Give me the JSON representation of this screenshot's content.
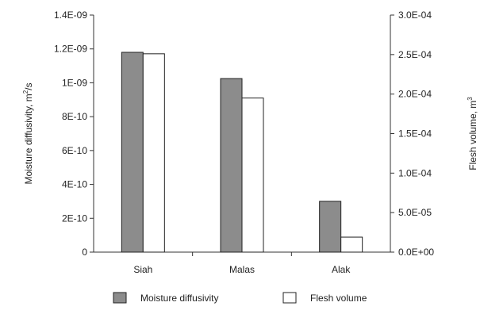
{
  "chart_data": {
    "type": "bar",
    "categories": [
      "Siah",
      "Malas",
      "Alak"
    ],
    "series": [
      {
        "name": "Moisture diffusivity",
        "axis": "left",
        "values": [
          1.18e-09,
          1.025e-09,
          3e-10
        ],
        "color": "#8c8c8c"
      },
      {
        "name": "Flesh volume",
        "axis": "right",
        "values": [
          0.000251,
          0.000195,
          1.9e-05
        ],
        "color": "#ffffff"
      }
    ],
    "y_left": {
      "label_main": "Moisture diffusivity, m",
      "label_sup": "2",
      "label_tail": "/s",
      "ylim": [
        0,
        1.4e-09
      ],
      "ticks": [
        0,
        2e-10,
        4e-10,
        6e-10,
        8e-10,
        1e-09,
        1.2e-09,
        1.4e-09
      ],
      "tick_labels": [
        "0",
        "2E-10",
        "4E-10",
        "6E-10",
        "8E-10",
        "1E-09",
        "1.2E-09",
        "1.4E-09"
      ]
    },
    "y_right": {
      "label_main": "Flesh volume, m",
      "label_sup": "3",
      "ylim": [
        0,
        0.0003
      ],
      "ticks": [
        0,
        5e-05,
        0.0001,
        0.00015,
        0.0002,
        0.00025,
        0.0003
      ],
      "tick_labels": [
        "0.0E+00",
        "5.0E-05",
        "1.0E-04",
        "1.5E-04",
        "2.0E-04",
        "2.5E-04",
        "3.0E-04"
      ]
    },
    "grid": false,
    "legend_position": "bottom"
  }
}
